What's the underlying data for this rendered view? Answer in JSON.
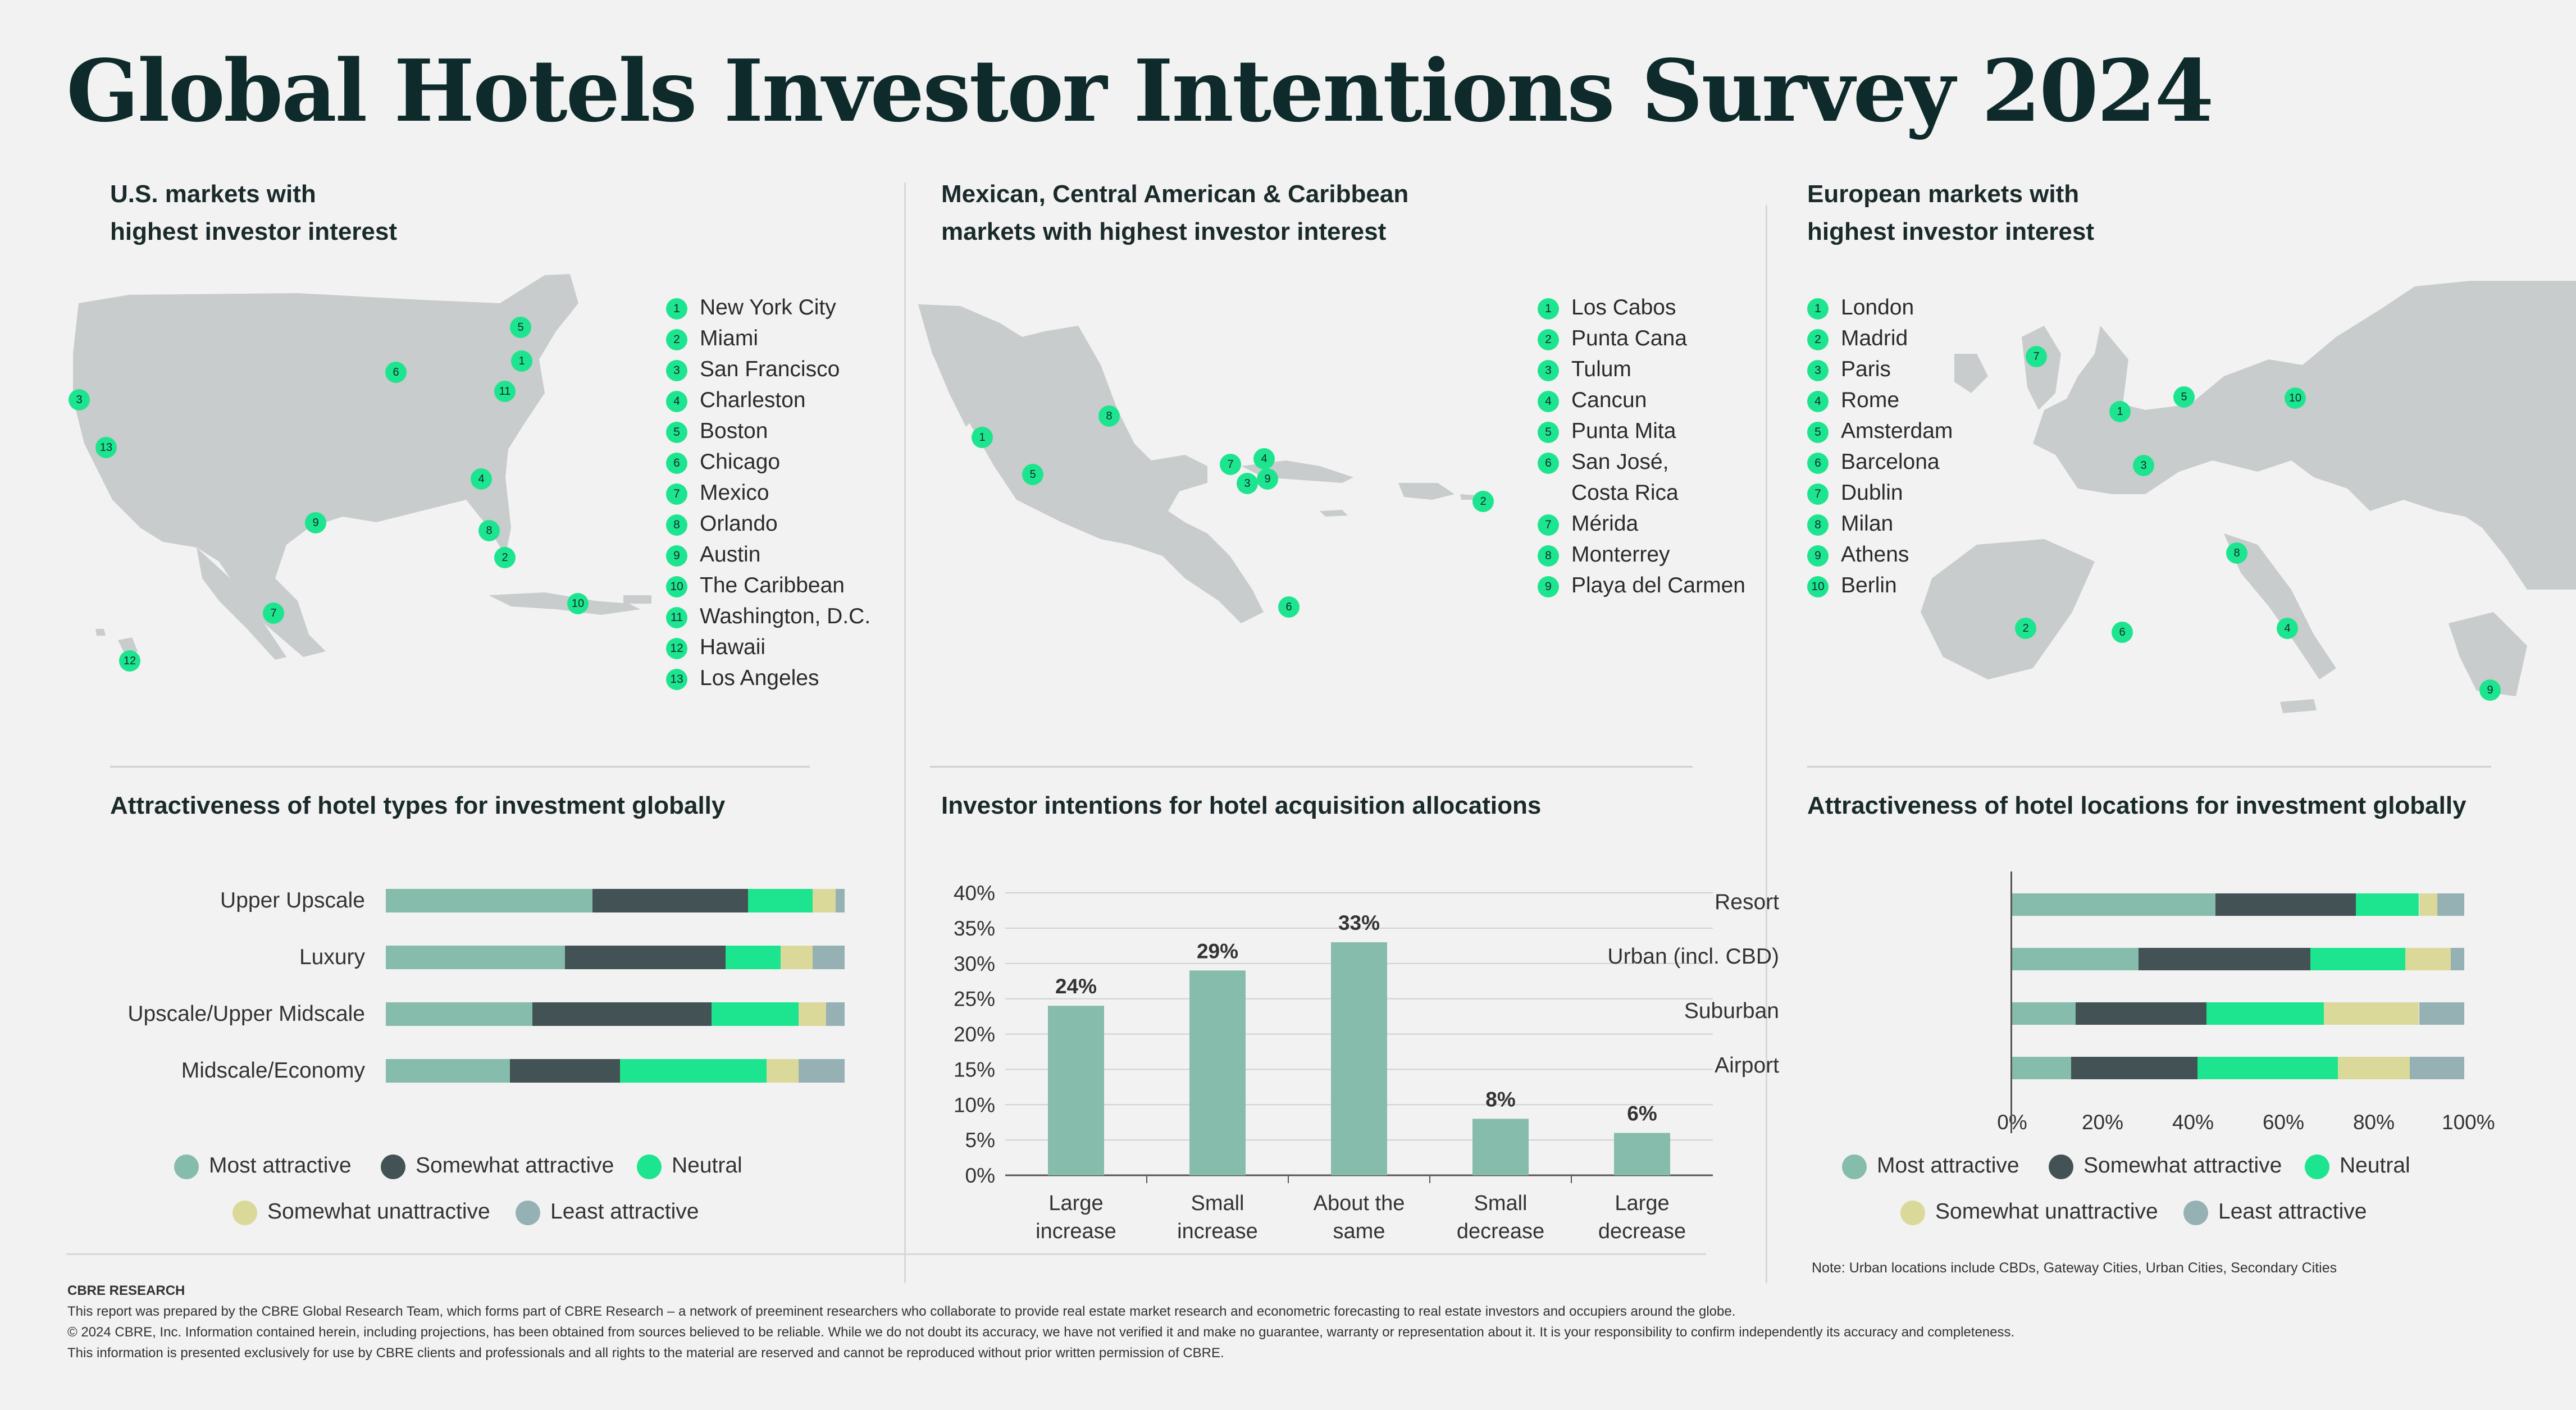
{
  "title": "Global Hotels Investor Intentions Survey 2024",
  "us": {
    "heading_line1": "U.S. markets with",
    "heading_line2": "highest investor interest",
    "markets": [
      "New York City",
      "Miami",
      "San Francisco",
      "Charleston",
      "Boston",
      "Chicago",
      "Mexico",
      "Orlando",
      "Austin",
      "The Caribbean",
      "Washington, D.C.",
      "Hawaii",
      "Los Angeles"
    ]
  },
  "mx": {
    "heading_line1": "Mexican, Central American & Caribbean",
    "heading_line2": "markets with highest investor interest",
    "markets": [
      "Los Cabos",
      "Punta Cana",
      "Tulum",
      "Cancun",
      "Punta Mita",
      "San José,",
      "Mérida",
      "Monterrey",
      "Playa del Carmen"
    ],
    "market6_line2": "Costa Rica"
  },
  "eu": {
    "heading_line1": "European markets with",
    "heading_line2": "highest investor interest",
    "markets": [
      "London",
      "Madrid",
      "Paris",
      "Rome",
      "Amsterdam",
      "Barcelona",
      "Dublin",
      "Milan",
      "Athens",
      "Berlin"
    ]
  },
  "colors": {
    "most": "#85bcab",
    "somewhat": "#435254",
    "neutral": "#1de58f",
    "unattractive": "#dbd99a",
    "least": "#96b1b4",
    "bar": "#85bcab",
    "marker": "#1de58f"
  },
  "legend_labels": {
    "most": "Most attractive",
    "somewhat": "Somewhat attractive",
    "neutral": "Neutral",
    "unattractive": "Somewhat unattractive",
    "least": "Least attractive"
  },
  "chart_data": [
    {
      "type": "bar",
      "orientation": "horizontal-stacked",
      "title": "Attractiveness of hotel types for investment globally",
      "categories": [
        "Upper Upscale",
        "Luxury",
        "Upscale/Upper Midscale",
        "Midscale/Economy"
      ],
      "series": [
        {
          "name": "Most attractive",
          "values": [
            45,
            39,
            32,
            27
          ]
        },
        {
          "name": "Somewhat attractive",
          "values": [
            34,
            35,
            39,
            24
          ]
        },
        {
          "name": "Neutral",
          "values": [
            14,
            12,
            19,
            32
          ]
        },
        {
          "name": "Somewhat unattractive",
          "values": [
            5,
            7,
            6,
            7
          ]
        },
        {
          "name": "Least attractive",
          "values": [
            2,
            7,
            4,
            10
          ]
        }
      ],
      "xlim": [
        0,
        100
      ],
      "legend": "bottom"
    },
    {
      "type": "bar",
      "title": "Investor intentions for hotel acquisition allocations",
      "categories": [
        "Large increase",
        "Small increase",
        "About the same",
        "Small decrease",
        "Large decrease"
      ],
      "category_lines": [
        [
          "Large",
          "increase"
        ],
        [
          "Small",
          "increase"
        ],
        [
          "About the",
          "same"
        ],
        [
          "Small",
          "decrease"
        ],
        [
          "Large",
          "decrease"
        ]
      ],
      "values": [
        24,
        29,
        33,
        8,
        6
      ],
      "value_labels": [
        "24%",
        "29%",
        "33%",
        "8%",
        "6%"
      ],
      "ylim": [
        0,
        40
      ],
      "yticks": [
        "0%",
        "5%",
        "10%",
        "15%",
        "20%",
        "25%",
        "30%",
        "35%",
        "40%"
      ],
      "grid": true
    },
    {
      "type": "bar",
      "orientation": "horizontal-stacked",
      "title": "Attractiveness of hotel locations for investment globally",
      "categories": [
        "Resort",
        "Urban (incl. CBD)",
        "Suburban",
        "Airport"
      ],
      "series": [
        {
          "name": "Most attractive",
          "values": [
            45,
            28,
            14,
            13
          ]
        },
        {
          "name": "Somewhat attractive",
          "values": [
            31,
            38,
            29,
            28
          ]
        },
        {
          "name": "Neutral",
          "values": [
            14,
            21,
            26,
            31
          ]
        },
        {
          "name": "Somewhat unattractive",
          "values": [
            4,
            10,
            21,
            16
          ]
        },
        {
          "name": "Least attractive",
          "values": [
            6,
            3,
            10,
            12
          ]
        }
      ],
      "xlim": [
        0,
        100
      ],
      "xticks": [
        "0%",
        "20%",
        "40%",
        "60%",
        "80%",
        "100%"
      ],
      "legend": "bottom",
      "note": "Note: Urban locations include CBDs, Gateway Cities, Urban Cities, Secondary Cities"
    }
  ],
  "footer": {
    "brand": "CBRE  RESEARCH",
    "line1": "This report was prepared by the CBRE Global Research Team, which forms part of CBRE Research – a network of preeminent researchers who collaborate to provide real estate market research and econometric forecasting to real estate investors and occupiers around the globe.",
    "line2": "© 2024 CBRE, Inc. Information contained herein, including projections, has been obtained from sources believed to be reliable. While we do not doubt its accuracy, we have not verified it and make no guarantee, warranty or representation about it. It is your responsibility to confirm independently its accuracy and completeness.",
    "line3": "This information is presented exclusively for use by CBRE clients and professionals and all rights to the material are reserved and cannot be reproduced without prior written permission of CBRE."
  }
}
